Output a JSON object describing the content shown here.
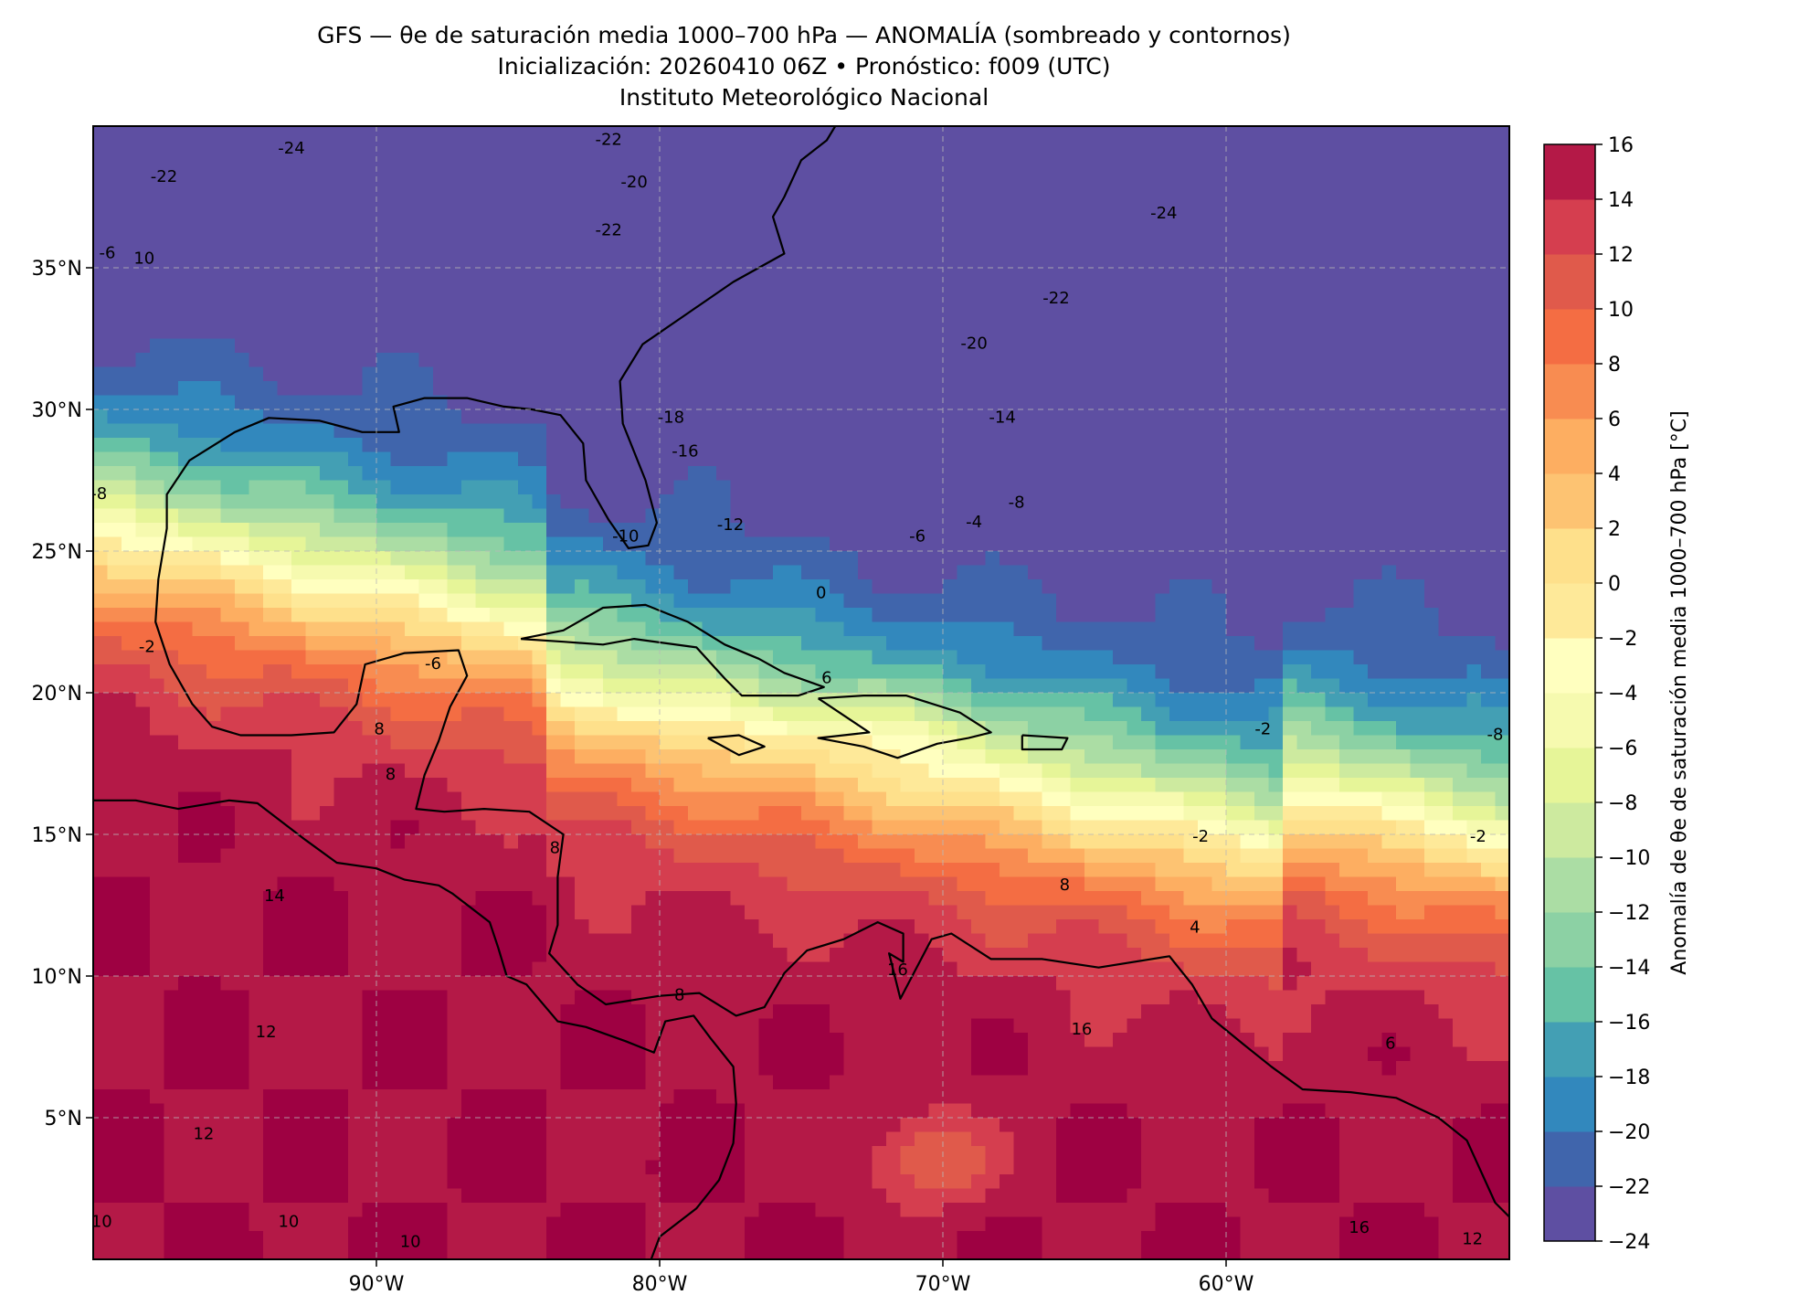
{
  "header": {
    "title_line1": "GFS — θe de saturación media 1000–700 hPa — ANOMALÍA (sombreado y contornos)",
    "title_line2": "Inicialización: 20260410 06Z   •   Pronóstico: f009 (UTC)",
    "title_line3": "Instituto Meteorológico Nacional"
  },
  "map": {
    "lon_range": [
      -100,
      -50
    ],
    "lat_range": [
      0,
      40
    ],
    "lon_ticks": [
      {
        "value": -90,
        "label": "90°W"
      },
      {
        "value": -80,
        "label": "80°W"
      },
      {
        "value": -70,
        "label": "70°W"
      },
      {
        "value": -60,
        "label": "60°W"
      }
    ],
    "lat_ticks": [
      {
        "value": 35,
        "label": "35°N"
      },
      {
        "value": 30,
        "label": "30°N"
      },
      {
        "value": 25,
        "label": "25°N"
      },
      {
        "value": 20,
        "label": "20°N"
      },
      {
        "value": 15,
        "label": "15°N"
      },
      {
        "value": 10,
        "label": "10°N"
      },
      {
        "value": 5,
        "label": "5°N"
      }
    ],
    "gridlines": true
  },
  "chart_data": {
    "type": "heatmap",
    "variable": "Anomalía de θe de saturación media 1000–700 hPa",
    "units": "°C",
    "colorbar_label": "Anomalía de θe de saturación media 1000–700 hPa [°C]",
    "colormap": "Spectral_r",
    "levels": [
      -24,
      -22,
      -20,
      -18,
      -16,
      -14,
      -12,
      -10,
      -8,
      -6,
      -4,
      -2,
      0,
      2,
      4,
      6,
      8,
      10,
      12,
      14,
      16
    ],
    "level_colors": [
      "#5e4fa2",
      "#4065ac",
      "#3288bd",
      "#439fb4",
      "#66c2a5",
      "#8cd1a4",
      "#abdda4",
      "#cdea9f",
      "#e6f598",
      "#f6faaf",
      "#ffffbf",
      "#fee999",
      "#fee08b",
      "#fdc372",
      "#fdae61",
      "#f88c51",
      "#f46d43",
      "#e05a4b",
      "#d53e4f",
      "#b41947",
      "#9e0142"
    ],
    "colorbar_ticks": [
      16,
      14,
      12,
      10,
      8,
      6,
      4,
      2,
      0,
      -2,
      -4,
      -6,
      -8,
      -10,
      -12,
      -14,
      -16,
      -18,
      -20,
      -22,
      -24
    ],
    "contour_labels_shown": [
      {
        "text": "-24",
        "lon": -93,
        "lat": 39.2
      },
      {
        "text": "-22",
        "lon": -97.5,
        "lat": 38.2
      },
      {
        "text": "-22",
        "lon": -81.8,
        "lat": 39.5
      },
      {
        "text": "-20",
        "lon": -80.9,
        "lat": 38
      },
      {
        "text": "-22",
        "lon": -81.8,
        "lat": 36.3
      },
      {
        "text": "-24",
        "lon": -62.2,
        "lat": 36.9
      },
      {
        "text": "-22",
        "lon": -66,
        "lat": 33.9
      },
      {
        "text": "-20",
        "lon": -68.9,
        "lat": 32.3
      },
      {
        "text": "-18",
        "lon": -79.6,
        "lat": 29.7
      },
      {
        "text": "-16",
        "lon": -79.1,
        "lat": 28.5
      },
      {
        "text": "-14",
        "lon": -67.9,
        "lat": 29.7
      },
      {
        "text": "-12",
        "lon": -77.5,
        "lat": 25.9
      },
      {
        "text": "-10",
        "lon": -81.2,
        "lat": 25.5
      },
      {
        "text": "-8",
        "lon": -67.4,
        "lat": 26.7
      },
      {
        "text": "-6",
        "lon": -70.9,
        "lat": 25.5
      },
      {
        "text": "-4",
        "lon": -68.9,
        "lat": 26
      },
      {
        "text": "0",
        "lon": -74.3,
        "lat": 23.5
      },
      {
        "text": "-6",
        "lon": -99.5,
        "lat": 35.5
      },
      {
        "text": "10",
        "lon": -98.2,
        "lat": 35.3
      },
      {
        "text": "-8",
        "lon": -99.8,
        "lat": 27
      },
      {
        "text": "-2",
        "lon": -98.1,
        "lat": 21.6
      },
      {
        "text": "-6",
        "lon": -88,
        "lat": 21
      },
      {
        "text": "8",
        "lon": -89.9,
        "lat": 18.7
      },
      {
        "text": "6",
        "lon": -74.1,
        "lat": 20.5
      },
      {
        "text": "8",
        "lon": -89.5,
        "lat": 17.1
      },
      {
        "text": "8",
        "lon": -83.7,
        "lat": 14.5
      },
      {
        "text": "14",
        "lon": -93.6,
        "lat": 12.8
      },
      {
        "text": "12",
        "lon": -93.9,
        "lat": 8
      },
      {
        "text": "12",
        "lon": -96.1,
        "lat": 4.4
      },
      {
        "text": "10",
        "lon": -99.7,
        "lat": 1.3
      },
      {
        "text": "10",
        "lon": -93.1,
        "lat": 1.3
      },
      {
        "text": "10",
        "lon": -88.8,
        "lat": 0.6
      },
      {
        "text": "8",
        "lon": -79.3,
        "lat": 9.3
      },
      {
        "text": "16",
        "lon": -71.6,
        "lat": 10.2
      },
      {
        "text": "16",
        "lon": -65.1,
        "lat": 8.1
      },
      {
        "text": "8",
        "lon": -65.7,
        "lat": 13.2
      },
      {
        "text": "-2",
        "lon": -58.7,
        "lat": 18.7
      },
      {
        "text": "-2",
        "lon": -51.1,
        "lat": 14.9
      },
      {
        "text": "-2",
        "lon": -60.9,
        "lat": 14.9
      },
      {
        "text": "4",
        "lon": -61.1,
        "lat": 11.7
      },
      {
        "text": "6",
        "lon": -54.2,
        "lat": 7.6
      },
      {
        "text": "-8",
        "lon": -50.5,
        "lat": 18.5
      },
      {
        "text": "16",
        "lon": -55.3,
        "lat": 1.1
      },
      {
        "text": "12",
        "lon": -51.3,
        "lat": 0.7
      }
    ]
  }
}
